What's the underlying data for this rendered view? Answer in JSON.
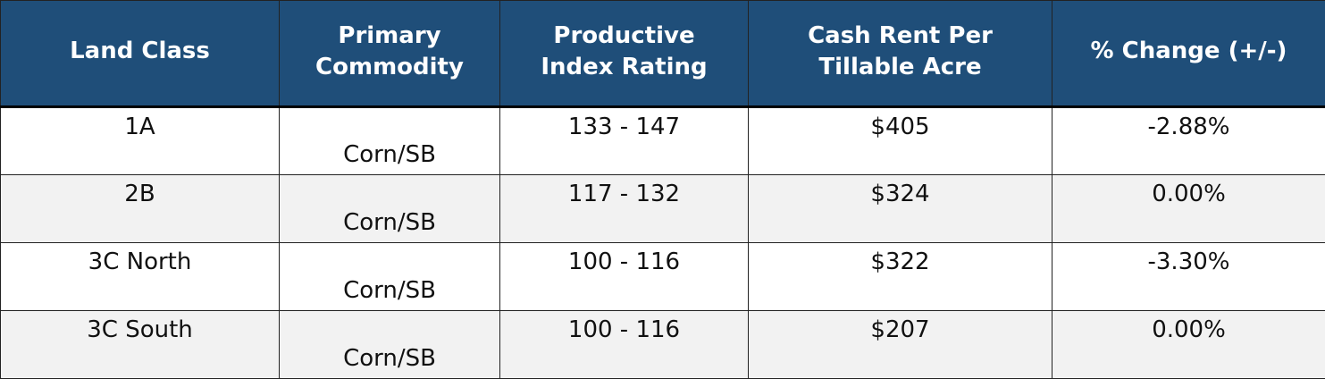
{
  "table": {
    "headers": [
      "Land Class",
      "Primary Commodity",
      "Productive Index Rating",
      "Cash Rent Per Tillable Acre",
      "% Change (+/-)"
    ],
    "rows": [
      {
        "land_class": "1A",
        "commodity": "Corn/SB",
        "index_rating": "133 - 147",
        "cash_rent": "$405",
        "change": "-2.88%"
      },
      {
        "land_class": "2B",
        "commodity": "Corn/SB",
        "index_rating": "117 - 132",
        "cash_rent": "$324",
        "change": "0.00%"
      },
      {
        "land_class": "3C North",
        "commodity": "Corn/SB",
        "index_rating": "100 - 116",
        "cash_rent": "$322",
        "change": "-3.30%"
      },
      {
        "land_class": "3C South",
        "commodity": "Corn/SB",
        "index_rating": "100 - 116",
        "cash_rent": "$207",
        "change": "0.00%"
      }
    ]
  },
  "colors": {
    "header_bg": "#1f4e79",
    "header_text": "#ffffff",
    "row_alt_bg": "#f2f2f2",
    "border": "#222222"
  }
}
